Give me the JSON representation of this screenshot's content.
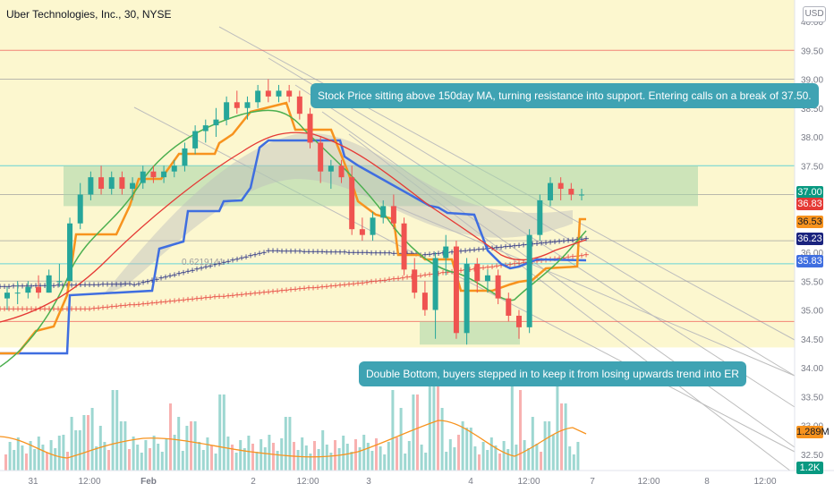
{
  "header": {
    "title": "Uber Technologies, Inc., 30, NYSE"
  },
  "currency_button": "USD",
  "annotations": {
    "top_callout": "Stock Price sitting above 150day MA, turning resistance into support. Entering calls on a break of 37.50.",
    "bottom_callout": "Double Bottom, buyers stepped in to keep it from losing upwards trend into ER",
    "fib_label": "0.6219141"
  },
  "price_tags": [
    {
      "text": "37.00",
      "color": "#089981",
      "fg": "#ffffff"
    },
    {
      "text": "36.83",
      "color": "#e53935",
      "fg": "#ffffff"
    },
    {
      "text": "36.53",
      "color": "#f7931e",
      "fg": "#131722"
    },
    {
      "text": "36.23",
      "color": "#1a237e",
      "fg": "#ffffff"
    },
    {
      "text": "35.83",
      "color": "#3f6ee0",
      "fg": "#ffffff"
    },
    {
      "text": "1.289M",
      "color": "#f7931e",
      "fg": "#131722"
    },
    {
      "text": "1.2K",
      "color": "#089981",
      "fg": "#ffffff"
    }
  ],
  "colors": {
    "up": "#26a69a",
    "down": "#ef5350",
    "bg_band": "#fbf6c7",
    "zone": "#a5d6a7",
    "accent": "#3fa3b3"
  },
  "chart_data": {
    "type": "candlestick",
    "title": "Uber Technologies, Inc., 30, NYSE",
    "y_axis": {
      "ticks": [
        "40.00",
        "39.50",
        "39.00",
        "38.50",
        "38.00",
        "37.50",
        "37.00",
        "36.50",
        "36.00",
        "35.50",
        "35.00",
        "34.50",
        "34.00",
        "33.50",
        "33.00",
        "32.50"
      ],
      "range": [
        32.3,
        40.1
      ]
    },
    "x_axis": {
      "ticks": [
        "31",
        "12:00",
        "Feb",
        "2",
        "12:00",
        "3",
        "4",
        "12:00",
        "7",
        "12:00",
        "8",
        "12:00"
      ]
    },
    "horizontal_levels": [
      {
        "value": 39.5,
        "color": "#ef5350"
      },
      {
        "value": 39.0,
        "color": "#9e9e9e"
      },
      {
        "value": 37.5,
        "color": "#26c6da"
      },
      {
        "value": 37.0,
        "color": "#9e9e9e"
      },
      {
        "value": 36.2,
        "color": "#9e9e9e"
      },
      {
        "value": 35.8,
        "color": "#26c6da"
      },
      {
        "value": 35.5,
        "color": "#9e9e9e"
      },
      {
        "value": 34.8,
        "color": "#ef5350"
      }
    ],
    "zones": [
      {
        "from": 36.8,
        "to": 37.5,
        "color": "#a5d6a7"
      },
      {
        "from": 34.4,
        "to": 34.8,
        "color": "#a5d6a7"
      }
    ],
    "candles": [
      [
        35.2,
        35.4,
        35.0,
        35.3
      ],
      [
        35.3,
        35.5,
        35.1,
        35.3
      ],
      [
        35.3,
        35.5,
        35.2,
        35.4
      ],
      [
        35.4,
        35.6,
        35.2,
        35.3
      ],
      [
        35.3,
        35.7,
        35.3,
        35.6
      ],
      [
        35.5,
        35.8,
        35.4,
        35.5
      ],
      [
        35.5,
        36.6,
        35.5,
        36.5
      ],
      [
        36.5,
        37.2,
        36.4,
        37.0
      ],
      [
        37.0,
        37.4,
        36.9,
        37.3
      ],
      [
        37.3,
        37.5,
        37.0,
        37.1
      ],
      [
        37.1,
        37.4,
        37.0,
        37.3
      ],
      [
        37.3,
        37.4,
        37.0,
        37.1
      ],
      [
        37.1,
        37.3,
        36.9,
        37.2
      ],
      [
        37.2,
        37.5,
        37.1,
        37.4
      ],
      [
        37.4,
        37.5,
        37.2,
        37.3
      ],
      [
        37.3,
        37.5,
        37.2,
        37.4
      ],
      [
        37.4,
        37.6,
        37.3,
        37.5
      ],
      [
        37.5,
        37.9,
        37.4,
        37.8
      ],
      [
        37.8,
        38.2,
        37.7,
        38.1
      ],
      [
        38.1,
        38.3,
        37.9,
        38.2
      ],
      [
        38.2,
        38.5,
        38.0,
        38.3
      ],
      [
        38.3,
        38.7,
        38.2,
        38.6
      ],
      [
        38.6,
        38.8,
        38.4,
        38.5
      ],
      [
        38.5,
        38.7,
        38.3,
        38.6
      ],
      [
        38.6,
        38.9,
        38.5,
        38.8
      ],
      [
        38.8,
        39.0,
        38.6,
        38.7
      ],
      [
        38.7,
        38.9,
        38.6,
        38.8
      ],
      [
        38.8,
        38.9,
        38.6,
        38.7
      ],
      [
        38.7,
        38.8,
        38.3,
        38.4
      ],
      [
        38.4,
        38.5,
        37.8,
        37.9
      ],
      [
        37.9,
        38.0,
        37.2,
        37.4
      ],
      [
        37.4,
        37.6,
        37.1,
        37.5
      ],
      [
        37.5,
        37.6,
        37.2,
        37.3
      ],
      [
        37.3,
        37.5,
        36.3,
        36.4
      ],
      [
        36.4,
        36.6,
        36.2,
        36.3
      ],
      [
        36.3,
        36.7,
        36.2,
        36.6
      ],
      [
        36.6,
        36.9,
        36.5,
        36.8
      ],
      [
        36.8,
        37.0,
        36.4,
        36.5
      ],
      [
        36.5,
        36.6,
        35.6,
        35.7
      ],
      [
        35.7,
        35.9,
        35.2,
        35.3
      ],
      [
        35.3,
        35.5,
        34.9,
        35.0
      ],
      [
        35.0,
        36.0,
        34.5,
        35.9
      ],
      [
        35.9,
        36.3,
        35.6,
        36.1
      ],
      [
        36.1,
        36.2,
        34.5,
        34.6
      ],
      [
        34.6,
        35.9,
        34.4,
        35.8
      ],
      [
        35.8,
        35.9,
        35.3,
        35.5
      ],
      [
        35.5,
        35.7,
        35.3,
        35.6
      ],
      [
        35.6,
        35.7,
        35.1,
        35.2
      ],
      [
        35.2,
        35.3,
        34.8,
        34.9
      ],
      [
        34.9,
        35.0,
        34.5,
        34.7
      ],
      [
        34.7,
        36.4,
        34.6,
        36.3
      ],
      [
        36.3,
        37.0,
        36.2,
        36.9
      ],
      [
        36.9,
        37.3,
        36.8,
        37.2
      ],
      [
        37.2,
        37.3,
        36.9,
        37.1
      ],
      [
        37.1,
        37.2,
        36.9,
        37.0
      ],
      [
        37.0,
        37.1,
        36.9,
        37.0
      ]
    ],
    "series": [
      {
        "name": "",
        "color": "#e53935",
        "style": "cross"
      },
      {
        "name": "",
        "color": "#1a237e",
        "style": "cross"
      },
      {
        "name": "",
        "color": "#3f6ee0",
        "style": "step"
      },
      {
        "name": "",
        "color": "#f7931e",
        "style": "step"
      },
      {
        "name": "",
        "color": "#4caf50",
        "style": "line"
      },
      {
        "name": "",
        "color": "#e53935",
        "style": "line"
      }
    ],
    "volume_label": "1.289M"
  }
}
